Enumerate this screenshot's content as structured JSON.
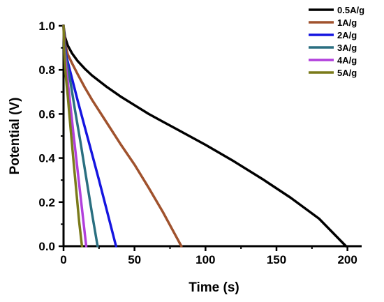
{
  "chart_data": {
    "type": "line",
    "title": "",
    "xlabel": "Time (s)",
    "ylabel": "Potential (V)",
    "xlim": [
      0,
      210
    ],
    "ylim": [
      0,
      1.0
    ],
    "xticks": [
      0,
      50,
      100,
      150,
      200
    ],
    "xtick_labels": [
      "0",
      "50",
      "100",
      "150",
      "200"
    ],
    "yticks": [
      0,
      0.2,
      0.4,
      0.6,
      0.8,
      1.0
    ],
    "ytick_labels": [
      "0.0",
      "0.2",
      "0.4",
      "0.6",
      "0.8",
      "1.0"
    ],
    "grid": false,
    "legend_position": "top-right",
    "series": [
      {
        "name": "0.5A/g",
        "color": "#000000",
        "x": [
          0,
          1,
          3,
          6,
          10,
          15,
          20,
          30,
          40,
          50,
          60,
          70,
          80,
          100,
          120,
          140,
          160,
          180,
          199
        ],
        "y": [
          1.0,
          0.95,
          0.91,
          0.875,
          0.84,
          0.805,
          0.775,
          0.725,
          0.68,
          0.64,
          0.6,
          0.565,
          0.53,
          0.46,
          0.385,
          0.305,
          0.22,
          0.125,
          0.0
        ]
      },
      {
        "name": "1A/g",
        "color": "#a0522d",
        "x": [
          0,
          1,
          3,
          6,
          10,
          15,
          20,
          30,
          40,
          50,
          60,
          70,
          83
        ],
        "y": [
          1.0,
          0.92,
          0.87,
          0.83,
          0.78,
          0.72,
          0.665,
          0.565,
          0.465,
          0.37,
          0.265,
          0.155,
          0.0
        ]
      },
      {
        "name": "2A/g",
        "color": "#1515e0",
        "x": [
          0,
          0.5,
          2,
          5,
          10,
          15,
          20,
          25,
          30,
          37
        ],
        "y": [
          1.0,
          0.93,
          0.86,
          0.785,
          0.66,
          0.54,
          0.42,
          0.3,
          0.175,
          0.0
        ]
      },
      {
        "name": "3A/g",
        "color": "#2a6f80",
        "x": [
          0,
          0.5,
          2,
          5,
          8,
          12,
          16,
          20,
          24
        ],
        "y": [
          1.0,
          0.92,
          0.84,
          0.74,
          0.62,
          0.47,
          0.31,
          0.15,
          0.0
        ]
      },
      {
        "name": "4A/g",
        "color": "#b13fdc",
        "x": [
          0,
          0.5,
          2,
          4,
          7,
          10,
          13,
          16
        ],
        "y": [
          1.0,
          0.9,
          0.8,
          0.69,
          0.51,
          0.34,
          0.17,
          0.0
        ]
      },
      {
        "name": "5A/g",
        "color": "#7a7a1a",
        "x": [
          0,
          0.5,
          1.5,
          3,
          5,
          7,
          9,
          11,
          13
        ],
        "y": [
          1.0,
          0.88,
          0.78,
          0.68,
          0.53,
          0.39,
          0.25,
          0.11,
          0.0
        ]
      }
    ]
  }
}
